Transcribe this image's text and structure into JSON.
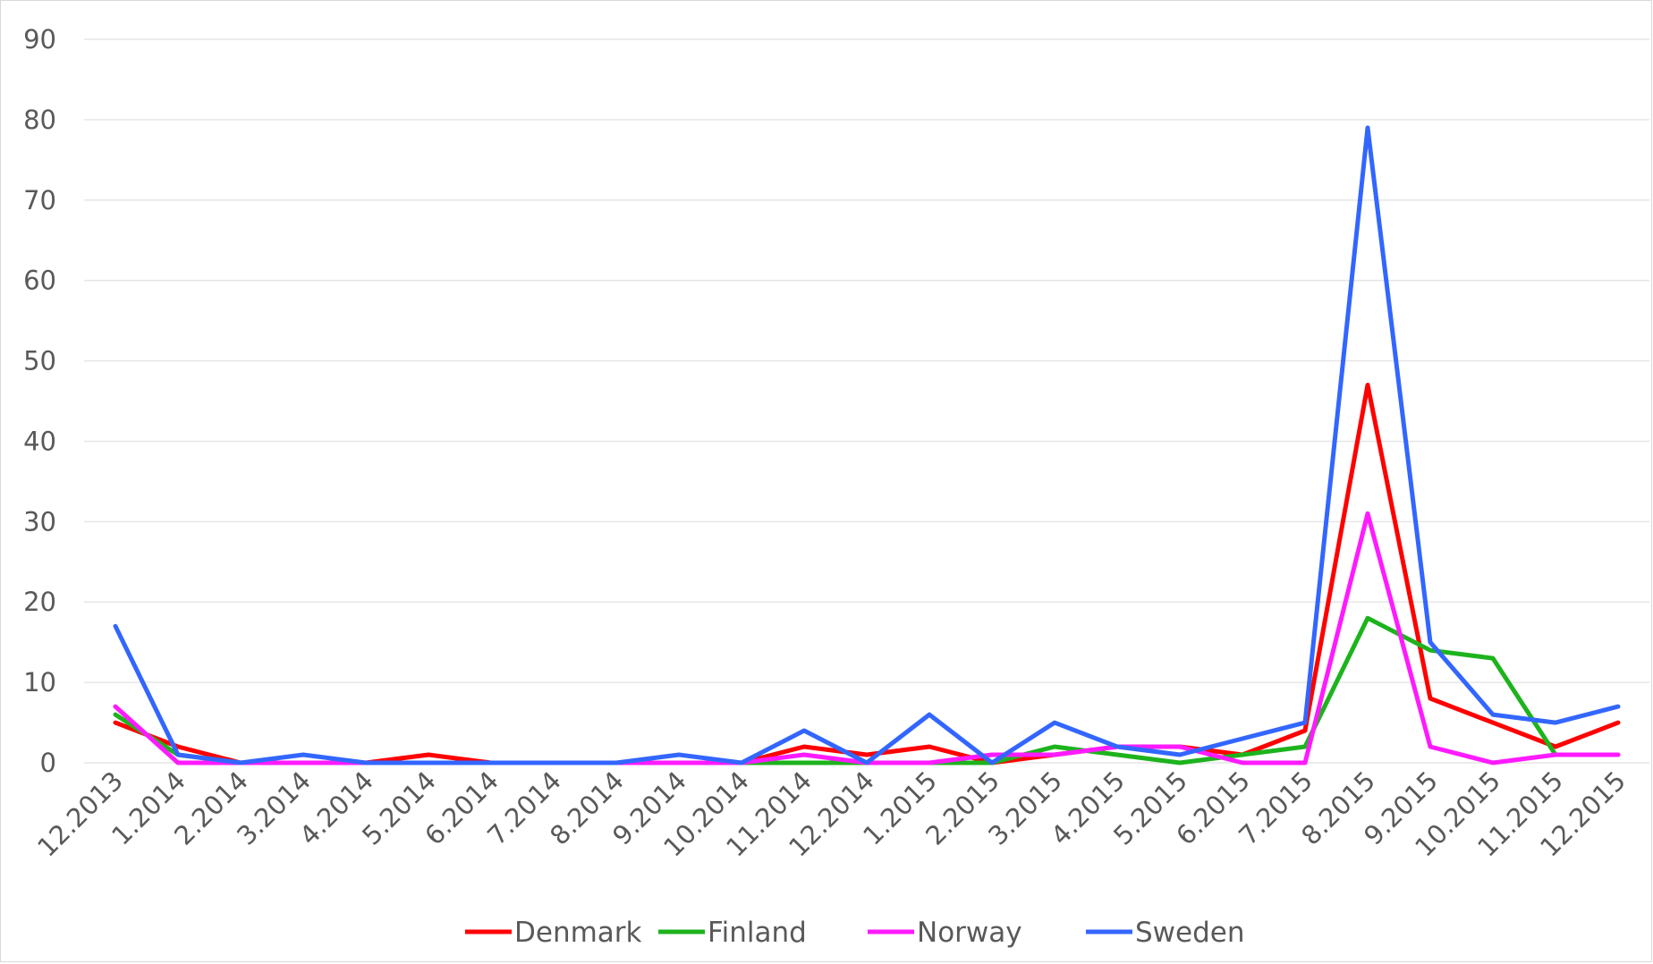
{
  "chart_data": {
    "type": "line",
    "title": "",
    "xlabel": "",
    "ylabel": "",
    "ylim": [
      0,
      90
    ],
    "yticks": [
      0,
      10,
      20,
      30,
      40,
      50,
      60,
      70,
      80,
      90
    ],
    "grid": true,
    "legend_position": "bottom",
    "x": [
      "12.2013",
      "1.2014",
      "2.2014",
      "3.2014",
      "4.2014",
      "5.2014",
      "6.2014",
      "7.2014",
      "8.2014",
      "9.2014",
      "10.2014",
      "11.2014",
      "12.2014",
      "1.2015",
      "2.2015",
      "3.2015",
      "4.2015",
      "5.2015",
      "6.2015",
      "7.2015",
      "8.2015",
      "9.2015",
      "10.2015",
      "11.2015",
      "12.2015"
    ],
    "series": [
      {
        "name": "Denmark",
        "color": "#ff0000",
        "values": [
          5,
          2,
          0,
          0,
          0,
          1,
          0,
          0,
          0,
          0,
          0,
          2,
          1,
          2,
          0,
          1,
          2,
          2,
          1,
          4,
          47,
          8,
          5,
          2,
          5
        ]
      },
      {
        "name": "Finland",
        "color": "#1db31d",
        "values": [
          6,
          1,
          0,
          0,
          0,
          0,
          0,
          0,
          0,
          0,
          0,
          0,
          0,
          0,
          0,
          2,
          1,
          0,
          1,
          2,
          18,
          14,
          13,
          1,
          1
        ]
      },
      {
        "name": "Norway",
        "color": "#ff1aff",
        "values": [
          7,
          0,
          0,
          0,
          0,
          0,
          0,
          0,
          0,
          0,
          0,
          1,
          0,
          0,
          1,
          1,
          2,
          2,
          0,
          0,
          31,
          2,
          0,
          1,
          1
        ]
      },
      {
        "name": "Sweden",
        "color": "#3366ff",
        "values": [
          17,
          1,
          0,
          1,
          0,
          0,
          0,
          0,
          0,
          1,
          0,
          4,
          0,
          6,
          0,
          5,
          2,
          1,
          3,
          5,
          79,
          15,
          6,
          5,
          7
        ]
      }
    ]
  }
}
